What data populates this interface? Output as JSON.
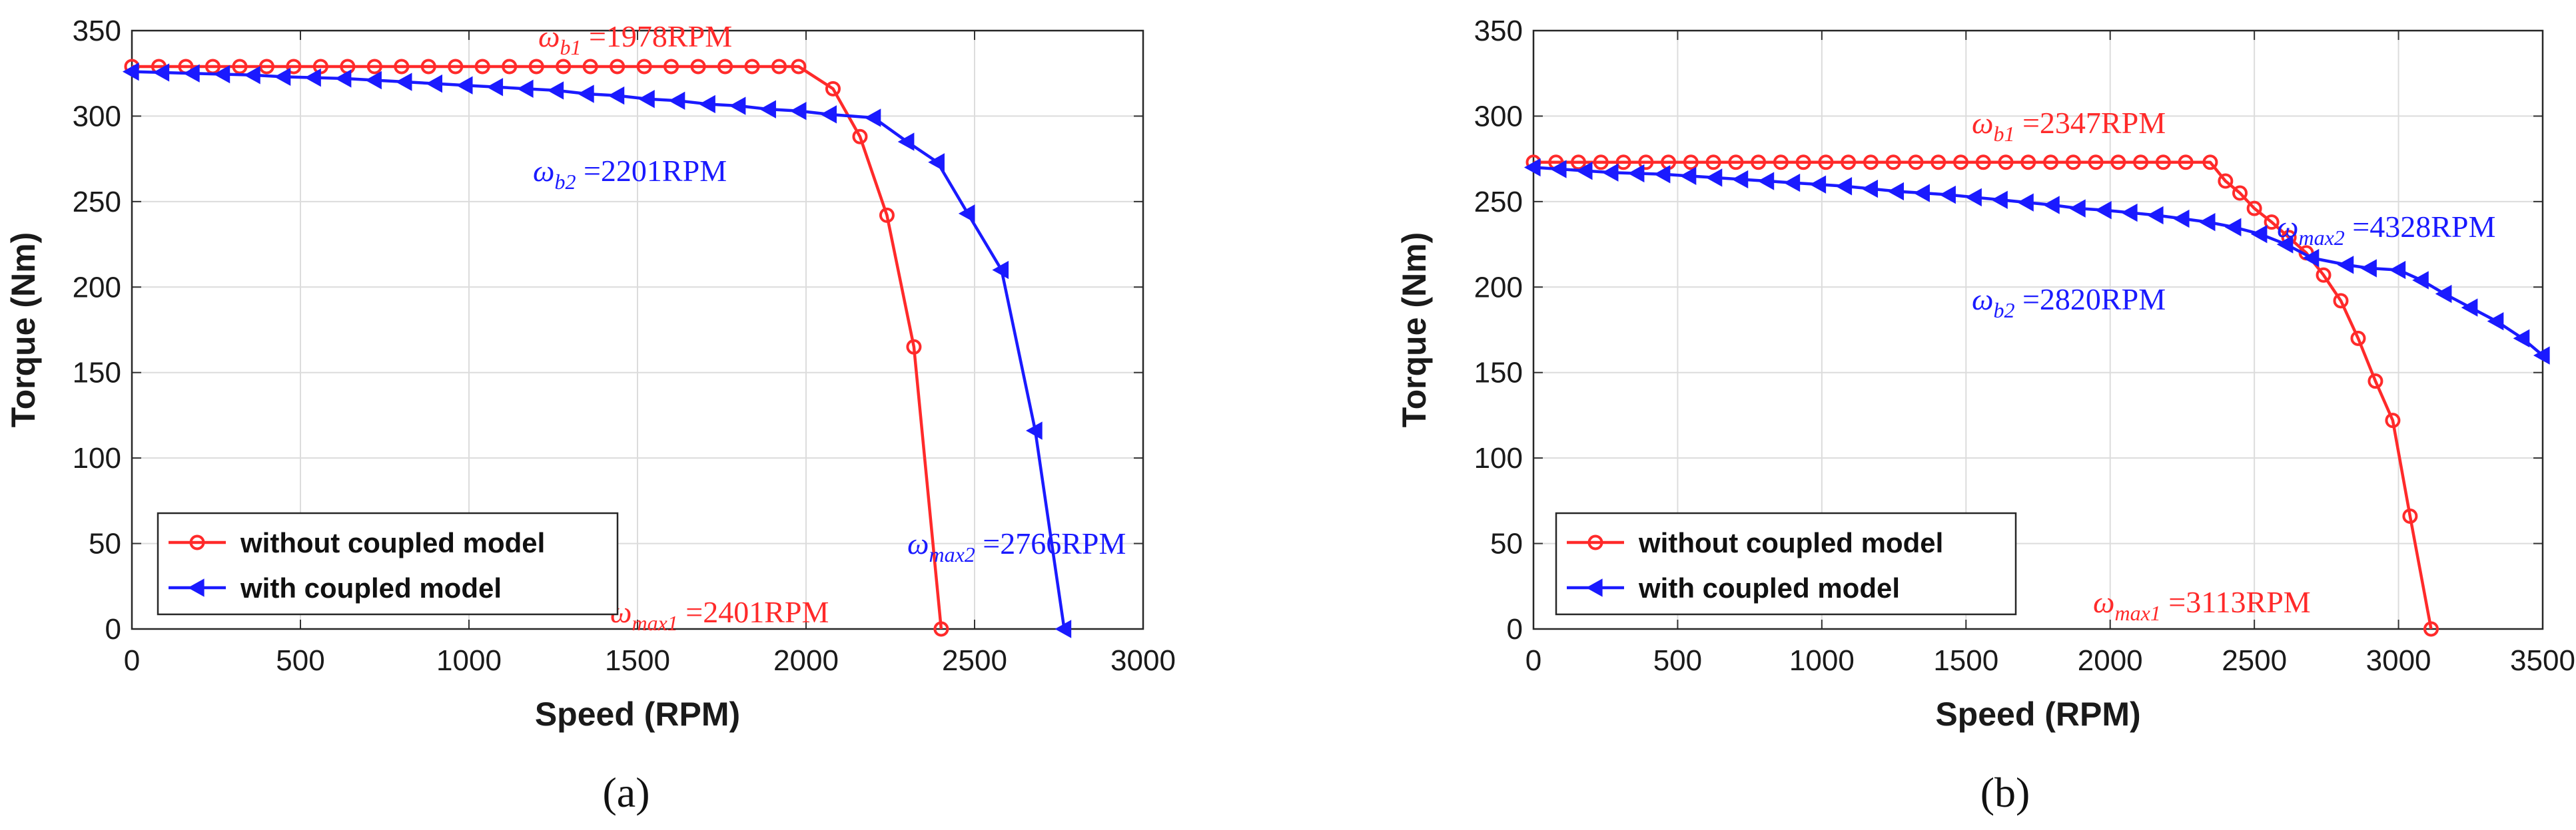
{
  "chart_data": [
    {
      "type": "line",
      "panel": "a",
      "caption": "(a)",
      "title": "",
      "xlabel": "Speed (RPM)",
      "ylabel": "Torque (Nm)",
      "xlim": [
        0,
        3000
      ],
      "ylim": [
        0,
        350
      ],
      "xticks": [
        0,
        500,
        1000,
        1500,
        2000,
        2500,
        3000
      ],
      "yticks": [
        0,
        50,
        100,
        150,
        200,
        250,
        300,
        350
      ],
      "grid": true,
      "legend_position": "bottom-left",
      "series": [
        {
          "name": "without coupled model",
          "color": "#ff2a2a",
          "marker": "circle",
          "x": [
            0,
            80,
            160,
            240,
            320,
            400,
            480,
            560,
            640,
            720,
            800,
            880,
            960,
            1040,
            1120,
            1200,
            1280,
            1360,
            1440,
            1520,
            1600,
            1680,
            1760,
            1840,
            1920,
            1978,
            2080,
            2160,
            2240,
            2320,
            2401
          ],
          "y": [
            329,
            329,
            329,
            329,
            329,
            329,
            329,
            329,
            329,
            329,
            329,
            329,
            329,
            329,
            329,
            329,
            329,
            329,
            329,
            329,
            329,
            329,
            329,
            329,
            329,
            329,
            316,
            288,
            242,
            165,
            0
          ]
        },
        {
          "name": "with coupled model",
          "color": "#1a1aff",
          "marker": "triangle-left",
          "x": [
            0,
            90,
            180,
            270,
            360,
            450,
            540,
            630,
            720,
            810,
            900,
            990,
            1080,
            1170,
            1260,
            1350,
            1440,
            1530,
            1620,
            1710,
            1800,
            1890,
            1980,
            2070,
            2201,
            2300,
            2390,
            2480,
            2580,
            2680,
            2766
          ],
          "y": [
            326,
            325.5,
            325,
            324.5,
            324,
            323,
            322.5,
            322,
            321,
            320,
            319,
            318,
            317,
            316,
            315,
            313,
            312,
            310,
            309,
            307,
            306,
            304,
            303,
            301,
            299,
            285,
            273,
            243,
            210,
            116,
            0
          ]
        }
      ],
      "annotations": [
        {
          "symbol": "ω",
          "sub": "b1",
          "text": " =1978RPM",
          "color": "#ff2a2a"
        },
        {
          "symbol": "ω",
          "sub": "b2",
          "text": " =2201RPM",
          "color": "#1a1aff"
        },
        {
          "symbol": "ω",
          "sub": "max2",
          "text": " =2766RPM",
          "color": "#1a1aff"
        },
        {
          "symbol": "ω",
          "sub": "max1",
          "text": " =2401RPM",
          "color": "#ff2a2a"
        }
      ]
    },
    {
      "type": "line",
      "panel": "b",
      "caption": "(b)",
      "title": "",
      "xlabel": "Speed (RPM)",
      "ylabel": "Torque (Nm)",
      "xlim": [
        0,
        3500
      ],
      "ylim": [
        0,
        350
      ],
      "xticks": [
        0,
        500,
        1000,
        1500,
        2000,
        2500,
        3000,
        3500
      ],
      "yticks": [
        0,
        50,
        100,
        150,
        200,
        250,
        300,
        350
      ],
      "grid": true,
      "legend_position": "bottom-left",
      "series": [
        {
          "name": "without coupled model",
          "color": "#ff2a2a",
          "marker": "circle",
          "x": [
            0,
            78,
            156,
            234,
            312,
            390,
            468,
            546,
            624,
            702,
            780,
            858,
            936,
            1014,
            1092,
            1170,
            1248,
            1326,
            1404,
            1482,
            1560,
            1638,
            1716,
            1794,
            1872,
            1950,
            2028,
            2106,
            2184,
            2262,
            2347,
            2400,
            2450,
            2500,
            2560,
            2620,
            2680,
            2740,
            2800,
            2860,
            2920,
            2980,
            3040,
            3113
          ],
          "y": [
            273,
            273,
            273,
            273,
            273,
            273,
            273,
            273,
            273,
            273,
            273,
            273,
            273,
            273,
            273,
            273,
            273,
            273,
            273,
            273,
            273,
            273,
            273,
            273,
            273,
            273,
            273,
            273,
            273,
            273,
            273,
            262,
            255,
            246,
            238,
            229,
            220,
            207,
            192,
            170,
            145,
            122,
            66,
            0
          ]
        },
        {
          "name": "with coupled model",
          "color": "#1a1aff",
          "marker": "triangle-left",
          "x": [
            0,
            90,
            180,
            270,
            360,
            450,
            540,
            630,
            720,
            810,
            900,
            990,
            1080,
            1170,
            1260,
            1350,
            1440,
            1530,
            1620,
            1710,
            1800,
            1890,
            1980,
            2070,
            2160,
            2250,
            2340,
            2430,
            2520,
            2610,
            2700,
            2820,
            2900,
            3000,
            3080,
            3160,
            3250,
            3340,
            3430,
            3500
          ],
          "y": [
            270,
            269,
            268,
            267,
            266.5,
            266,
            265,
            264,
            263,
            262,
            261,
            260,
            259,
            257.5,
            256,
            255,
            254,
            252.5,
            251,
            249.5,
            248,
            246,
            245,
            243.5,
            242,
            240,
            238,
            235,
            231,
            225,
            217,
            213,
            211,
            210,
            204,
            196,
            188,
            180,
            170,
            160
          ]
        }
      ],
      "annotations": [
        {
          "symbol": "ω",
          "sub": "b1",
          "text": " =2347RPM",
          "color": "#ff2a2a"
        },
        {
          "symbol": "ω",
          "sub": "max2",
          "text": " =4328RPM",
          "color": "#1a1aff"
        },
        {
          "symbol": "ω",
          "sub": "b2",
          "text": " =2820RPM",
          "color": "#1a1aff"
        },
        {
          "symbol": "ω",
          "sub": "max1",
          "text": " =3113RPM",
          "color": "#ff2a2a"
        }
      ]
    }
  ]
}
